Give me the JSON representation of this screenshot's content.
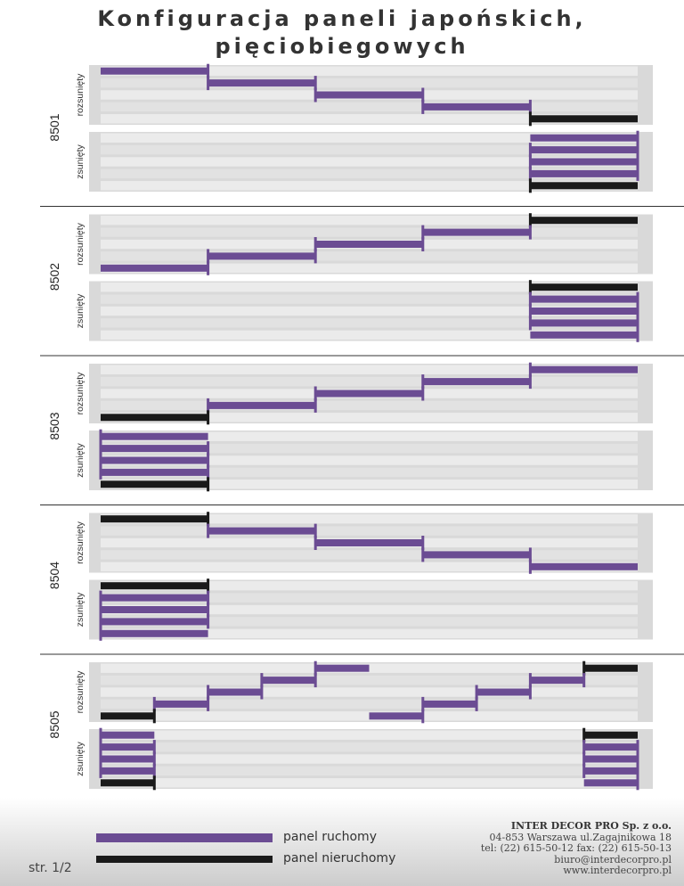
{
  "title": {
    "line1": "Konfiguracja paneli japońskich,",
    "line2": "pięciobiegowych"
  },
  "colors": {
    "movable": "#6b4c93",
    "fixed": "#1a1a1a",
    "box": "#d9d9d9",
    "track_light": "#ebebeb"
  },
  "state_labels": {
    "open": "rozsunięty",
    "closed": "zsunięty"
  },
  "configurations": [
    {
      "code": "8501",
      "open": [
        {
          "row": 0,
          "x0": 0.0,
          "x1": 0.2,
          "kind": "movable",
          "ticks": [
            0.2
          ]
        },
        {
          "row": 1,
          "x0": 0.2,
          "x1": 0.4,
          "kind": "movable",
          "ticks": [
            0.2,
            0.4
          ]
        },
        {
          "row": 2,
          "x0": 0.4,
          "x1": 0.6,
          "kind": "movable",
          "ticks": [
            0.4,
            0.6
          ]
        },
        {
          "row": 3,
          "x0": 0.6,
          "x1": 0.8,
          "kind": "movable",
          "ticks": [
            0.6,
            0.8
          ]
        },
        {
          "row": 4,
          "x0": 0.8,
          "x1": 1.0,
          "kind": "fixed",
          "ticks": [
            0.8
          ]
        }
      ],
      "closed": [
        {
          "row": 0,
          "x0": 0.8,
          "x1": 1.0,
          "kind": "movable",
          "ticks": [
            1.0
          ]
        },
        {
          "row": 1,
          "x0": 0.8,
          "x1": 1.0,
          "kind": "movable",
          "ticks": [
            0.8,
            1.0
          ]
        },
        {
          "row": 2,
          "x0": 0.8,
          "x1": 1.0,
          "kind": "movable",
          "ticks": [
            0.8,
            1.0
          ]
        },
        {
          "row": 3,
          "x0": 0.8,
          "x1": 1.0,
          "kind": "movable",
          "ticks": [
            0.8,
            1.0
          ]
        },
        {
          "row": 4,
          "x0": 0.8,
          "x1": 1.0,
          "kind": "fixed",
          "ticks": [
            0.8
          ]
        }
      ]
    },
    {
      "code": "8502",
      "open": [
        {
          "row": 0,
          "x0": 0.8,
          "x1": 1.0,
          "kind": "fixed",
          "ticks": [
            0.8
          ]
        },
        {
          "row": 1,
          "x0": 0.6,
          "x1": 0.8,
          "kind": "movable",
          "ticks": [
            0.6,
            0.8
          ]
        },
        {
          "row": 2,
          "x0": 0.4,
          "x1": 0.6,
          "kind": "movable",
          "ticks": [
            0.4,
            0.6
          ]
        },
        {
          "row": 3,
          "x0": 0.2,
          "x1": 0.4,
          "kind": "movable",
          "ticks": [
            0.2,
            0.4
          ]
        },
        {
          "row": 4,
          "x0": 0.0,
          "x1": 0.2,
          "kind": "movable",
          "ticks": [
            0.2
          ]
        }
      ],
      "closed": [
        {
          "row": 0,
          "x0": 0.8,
          "x1": 1.0,
          "kind": "fixed",
          "ticks": [
            0.8
          ]
        },
        {
          "row": 1,
          "x0": 0.8,
          "x1": 1.0,
          "kind": "movable",
          "ticks": [
            0.8,
            1.0
          ]
        },
        {
          "row": 2,
          "x0": 0.8,
          "x1": 1.0,
          "kind": "movable",
          "ticks": [
            0.8,
            1.0
          ]
        },
        {
          "row": 3,
          "x0": 0.8,
          "x1": 1.0,
          "kind": "movable",
          "ticks": [
            0.8,
            1.0
          ]
        },
        {
          "row": 4,
          "x0": 0.8,
          "x1": 1.0,
          "kind": "movable",
          "ticks": [
            1.0
          ]
        }
      ]
    },
    {
      "code": "8503",
      "open": [
        {
          "row": 0,
          "x0": 0.8,
          "x1": 1.0,
          "kind": "movable",
          "ticks": [
            0.8
          ]
        },
        {
          "row": 1,
          "x0": 0.6,
          "x1": 0.8,
          "kind": "movable",
          "ticks": [
            0.6,
            0.8
          ]
        },
        {
          "row": 2,
          "x0": 0.4,
          "x1": 0.6,
          "kind": "movable",
          "ticks": [
            0.4,
            0.6
          ]
        },
        {
          "row": 3,
          "x0": 0.2,
          "x1": 0.4,
          "kind": "movable",
          "ticks": [
            0.2,
            0.4
          ]
        },
        {
          "row": 4,
          "x0": 0.0,
          "x1": 0.2,
          "kind": "fixed",
          "ticks": [
            0.2
          ]
        }
      ],
      "closed": [
        {
          "row": 0,
          "x0": 0.0,
          "x1": 0.2,
          "kind": "movable",
          "ticks": [
            0.0
          ]
        },
        {
          "row": 1,
          "x0": 0.0,
          "x1": 0.2,
          "kind": "movable",
          "ticks": [
            0.0,
            0.2
          ]
        },
        {
          "row": 2,
          "x0": 0.0,
          "x1": 0.2,
          "kind": "movable",
          "ticks": [
            0.0,
            0.2
          ]
        },
        {
          "row": 3,
          "x0": 0.0,
          "x1": 0.2,
          "kind": "movable",
          "ticks": [
            0.0,
            0.2
          ]
        },
        {
          "row": 4,
          "x0": 0.0,
          "x1": 0.2,
          "kind": "fixed",
          "ticks": [
            0.2
          ]
        }
      ]
    },
    {
      "code": "8504",
      "open": [
        {
          "row": 0,
          "x0": 0.0,
          "x1": 0.2,
          "kind": "fixed",
          "ticks": [
            0.2
          ]
        },
        {
          "row": 1,
          "x0": 0.2,
          "x1": 0.4,
          "kind": "movable",
          "ticks": [
            0.2,
            0.4
          ]
        },
        {
          "row": 2,
          "x0": 0.4,
          "x1": 0.6,
          "kind": "movable",
          "ticks": [
            0.4,
            0.6
          ]
        },
        {
          "row": 3,
          "x0": 0.6,
          "x1": 0.8,
          "kind": "movable",
          "ticks": [
            0.6,
            0.8
          ]
        },
        {
          "row": 4,
          "x0": 0.8,
          "x1": 1.0,
          "kind": "movable",
          "ticks": [
            0.8
          ]
        }
      ],
      "closed": [
        {
          "row": 0,
          "x0": 0.0,
          "x1": 0.2,
          "kind": "fixed",
          "ticks": [
            0.2
          ]
        },
        {
          "row": 1,
          "x0": 0.0,
          "x1": 0.2,
          "kind": "movable",
          "ticks": [
            0.0,
            0.2
          ]
        },
        {
          "row": 2,
          "x0": 0.0,
          "x1": 0.2,
          "kind": "movable",
          "ticks": [
            0.0,
            0.2
          ]
        },
        {
          "row": 3,
          "x0": 0.0,
          "x1": 0.2,
          "kind": "movable",
          "ticks": [
            0.0,
            0.2
          ]
        },
        {
          "row": 4,
          "x0": 0.0,
          "x1": 0.2,
          "kind": "movable",
          "ticks": [
            0.0
          ]
        }
      ]
    },
    {
      "code": "8505",
      "open": [
        {
          "row": 0,
          "x0": 0.4,
          "x1": 0.5,
          "kind": "movable",
          "ticks": [
            0.4
          ]
        },
        {
          "row": 0,
          "x0": 0.9,
          "x1": 1.0,
          "kind": "fixed",
          "ticks": [
            0.9
          ]
        },
        {
          "row": 1,
          "x0": 0.3,
          "x1": 0.4,
          "kind": "movable",
          "ticks": [
            0.3,
            0.4
          ]
        },
        {
          "row": 1,
          "x0": 0.8,
          "x1": 0.9,
          "kind": "movable",
          "ticks": [
            0.8,
            0.9
          ]
        },
        {
          "row": 2,
          "x0": 0.2,
          "x1": 0.3,
          "kind": "movable",
          "ticks": [
            0.2,
            0.3
          ]
        },
        {
          "row": 2,
          "x0": 0.7,
          "x1": 0.8,
          "kind": "movable",
          "ticks": [
            0.7,
            0.8
          ]
        },
        {
          "row": 3,
          "x0": 0.1,
          "x1": 0.2,
          "kind": "movable",
          "ticks": [
            0.1,
            0.2
          ]
        },
        {
          "row": 3,
          "x0": 0.6,
          "x1": 0.7,
          "kind": "movable",
          "ticks": [
            0.6,
            0.7
          ]
        },
        {
          "row": 4,
          "x0": 0.0,
          "x1": 0.1,
          "kind": "fixed",
          "ticks": [
            0.1
          ]
        },
        {
          "row": 4,
          "x0": 0.5,
          "x1": 0.6,
          "kind": "movable",
          "ticks": [
            0.6
          ]
        }
      ],
      "closed": [
        {
          "row": 0,
          "x0": 0.0,
          "x1": 0.1,
          "kind": "movable",
          "ticks": [
            0.0
          ]
        },
        {
          "row": 0,
          "x0": 0.9,
          "x1": 1.0,
          "kind": "fixed",
          "ticks": [
            0.9
          ]
        },
        {
          "row": 1,
          "x0": 0.0,
          "x1": 0.1,
          "kind": "movable",
          "ticks": [
            0.0,
            0.1
          ]
        },
        {
          "row": 1,
          "x0": 0.9,
          "x1": 1.0,
          "kind": "movable",
          "ticks": [
            0.9,
            1.0
          ]
        },
        {
          "row": 2,
          "x0": 0.0,
          "x1": 0.1,
          "kind": "movable",
          "ticks": [
            0.0,
            0.1
          ]
        },
        {
          "row": 2,
          "x0": 0.9,
          "x1": 1.0,
          "kind": "movable",
          "ticks": [
            0.9,
            1.0
          ]
        },
        {
          "row": 3,
          "x0": 0.0,
          "x1": 0.1,
          "kind": "movable",
          "ticks": [
            0.0,
            0.1
          ]
        },
        {
          "row": 3,
          "x0": 0.9,
          "x1": 1.0,
          "kind": "movable",
          "ticks": [
            0.9,
            1.0
          ]
        },
        {
          "row": 4,
          "x0": 0.0,
          "x1": 0.1,
          "kind": "fixed",
          "ticks": [
            0.1
          ]
        },
        {
          "row": 4,
          "x0": 0.9,
          "x1": 1.0,
          "kind": "movable",
          "ticks": [
            1.0
          ]
        }
      ]
    }
  ],
  "legend": {
    "movable_label": "panel ruchomy",
    "fixed_label": "panel nieruchomy"
  },
  "company": {
    "name": "INTER DECOR PRO Sp. z o.o.",
    "address": "04-853 Warszawa ul.Zagajnikowa 18",
    "phone": "tel: (22) 615-50-12 fax: (22) 615-50-13",
    "email": "biuro@interdecorpro.pl",
    "website": "www.interdecorpro.pl"
  },
  "page_number": "str. 1/2"
}
